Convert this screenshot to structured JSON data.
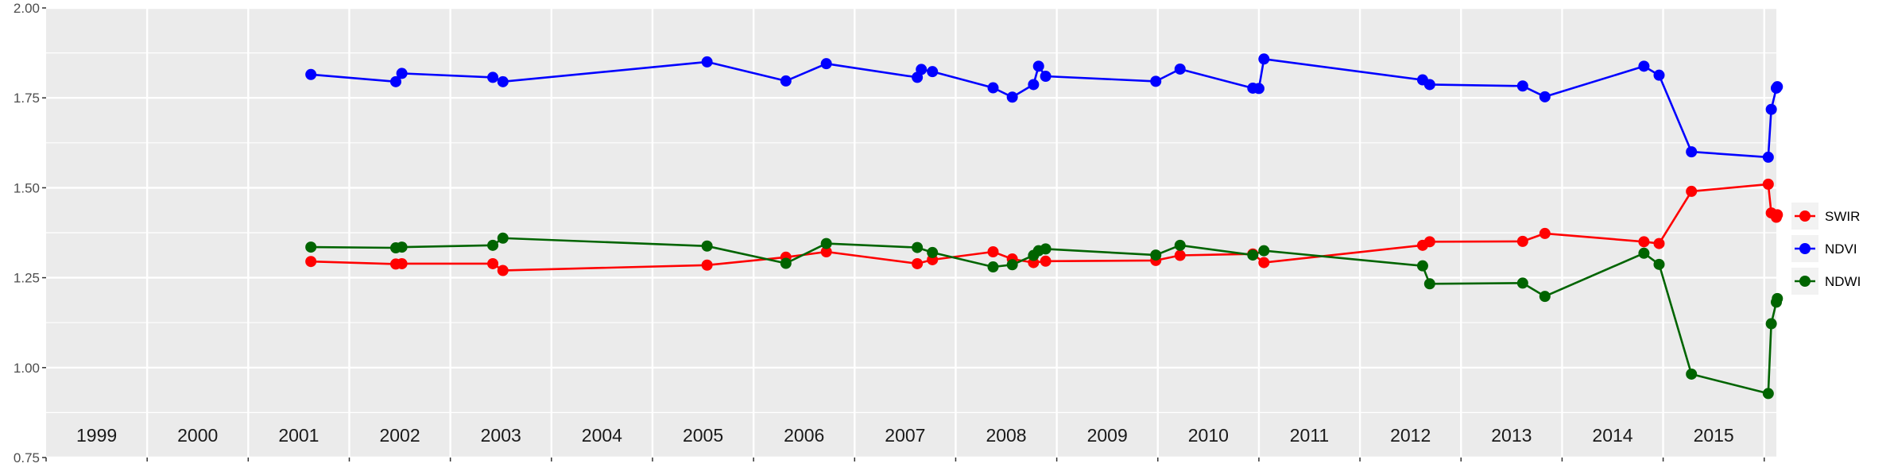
{
  "chart_data": {
    "type": "line",
    "title": "",
    "xlabel": "",
    "ylabel": "",
    "ylim": [
      0.75,
      2.0
    ],
    "y_ticks": [
      "0.75",
      "1.00",
      "1.25",
      "1.50",
      "1.75",
      "2.00"
    ],
    "y_tick_values": [
      0.75,
      1.0,
      1.25,
      1.5,
      1.75,
      2.0
    ],
    "xlim": [
      1999.0,
      2016.12
    ],
    "x_tick_labels": [
      "1999",
      "2000",
      "2001",
      "2002",
      "2003",
      "2004",
      "2005",
      "2006",
      "2007",
      "2008",
      "2009",
      "2010",
      "2011",
      "2012",
      "2013",
      "2014",
      "2015"
    ],
    "x_tick_label_years": [
      1999,
      2000,
      2001,
      2002,
      2003,
      2004,
      2005,
      2006,
      2007,
      2008,
      2009,
      2010,
      2011,
      2012,
      2013,
      2014,
      2015
    ],
    "grid": true,
    "panel_color": "#ebebeb",
    "legend_placement": "right",
    "legend": [
      "SWIR",
      "NDVI",
      "NDWI"
    ],
    "series": [
      {
        "name": "SWIR",
        "color": "#ff0000",
        "points": [
          {
            "x": 2001.62,
            "y": 1.295
          },
          {
            "x": 2002.46,
            "y": 1.288
          },
          {
            "x": 2002.52,
            "y": 1.289
          },
          {
            "x": 2003.42,
            "y": 1.289
          },
          {
            "x": 2003.52,
            "y": 1.27
          },
          {
            "x": 2005.54,
            "y": 1.285
          },
          {
            "x": 2006.32,
            "y": 1.307
          },
          {
            "x": 2006.72,
            "y": 1.322
          },
          {
            "x": 2007.62,
            "y": 1.289
          },
          {
            "x": 2007.77,
            "y": 1.3
          },
          {
            "x": 2008.37,
            "y": 1.322
          },
          {
            "x": 2008.56,
            "y": 1.302
          },
          {
            "x": 2008.77,
            "y": 1.292
          },
          {
            "x": 2008.89,
            "y": 1.296
          },
          {
            "x": 2009.98,
            "y": 1.298
          },
          {
            "x": 2010.22,
            "y": 1.312
          },
          {
            "x": 2010.94,
            "y": 1.316
          },
          {
            "x": 2011.05,
            "y": 1.292
          },
          {
            "x": 2012.62,
            "y": 1.34
          },
          {
            "x": 2012.69,
            "y": 1.35
          },
          {
            "x": 2013.61,
            "y": 1.351
          },
          {
            "x": 2013.83,
            "y": 1.373
          },
          {
            "x": 2014.81,
            "y": 1.35
          },
          {
            "x": 2014.96,
            "y": 1.345
          },
          {
            "x": 2015.28,
            "y": 1.49
          },
          {
            "x": 2016.04,
            "y": 1.51
          },
          {
            "x": 2016.07,
            "y": 1.43
          },
          {
            "x": 2016.12,
            "y": 1.418
          },
          {
            "x": 2016.13,
            "y": 1.425
          }
        ]
      },
      {
        "name": "NDVI",
        "color": "#0000ff",
        "points": [
          {
            "x": 2001.62,
            "y": 1.815
          },
          {
            "x": 2002.46,
            "y": 1.795
          },
          {
            "x": 2002.52,
            "y": 1.818
          },
          {
            "x": 2003.42,
            "y": 1.807
          },
          {
            "x": 2003.52,
            "y": 1.795
          },
          {
            "x": 2005.54,
            "y": 1.85
          },
          {
            "x": 2006.32,
            "y": 1.797
          },
          {
            "x": 2006.72,
            "y": 1.845
          },
          {
            "x": 2007.62,
            "y": 1.807
          },
          {
            "x": 2007.66,
            "y": 1.829
          },
          {
            "x": 2007.77,
            "y": 1.823
          },
          {
            "x": 2008.37,
            "y": 1.778
          },
          {
            "x": 2008.56,
            "y": 1.752
          },
          {
            "x": 2008.77,
            "y": 1.787
          },
          {
            "x": 2008.82,
            "y": 1.838
          },
          {
            "x": 2008.89,
            "y": 1.81
          },
          {
            "x": 2009.98,
            "y": 1.796
          },
          {
            "x": 2010.22,
            "y": 1.83
          },
          {
            "x": 2010.94,
            "y": 1.777
          },
          {
            "x": 2011.0,
            "y": 1.776
          },
          {
            "x": 2011.05,
            "y": 1.858
          },
          {
            "x": 2012.62,
            "y": 1.8
          },
          {
            "x": 2012.69,
            "y": 1.787
          },
          {
            "x": 2013.61,
            "y": 1.783
          },
          {
            "x": 2013.83,
            "y": 1.753
          },
          {
            "x": 2014.81,
            "y": 1.838
          },
          {
            "x": 2014.96,
            "y": 1.813
          },
          {
            "x": 2015.28,
            "y": 1.6
          },
          {
            "x": 2016.04,
            "y": 1.585
          },
          {
            "x": 2016.07,
            "y": 1.718
          },
          {
            "x": 2016.12,
            "y": 1.777
          },
          {
            "x": 2016.13,
            "y": 1.781
          }
        ]
      },
      {
        "name": "NDWI",
        "color": "#006400",
        "points": [
          {
            "x": 2001.62,
            "y": 1.335
          },
          {
            "x": 2002.46,
            "y": 1.333
          },
          {
            "x": 2002.52,
            "y": 1.335
          },
          {
            "x": 2003.42,
            "y": 1.34
          },
          {
            "x": 2003.52,
            "y": 1.36
          },
          {
            "x": 2005.54,
            "y": 1.338
          },
          {
            "x": 2006.32,
            "y": 1.29
          },
          {
            "x": 2006.72,
            "y": 1.345
          },
          {
            "x": 2007.62,
            "y": 1.334
          },
          {
            "x": 2007.77,
            "y": 1.32
          },
          {
            "x": 2008.37,
            "y": 1.28
          },
          {
            "x": 2008.56,
            "y": 1.286
          },
          {
            "x": 2008.77,
            "y": 1.312
          },
          {
            "x": 2008.82,
            "y": 1.325
          },
          {
            "x": 2008.89,
            "y": 1.33
          },
          {
            "x": 2009.98,
            "y": 1.313
          },
          {
            "x": 2010.22,
            "y": 1.34
          },
          {
            "x": 2010.94,
            "y": 1.313
          },
          {
            "x": 2011.05,
            "y": 1.325
          },
          {
            "x": 2012.62,
            "y": 1.283
          },
          {
            "x": 2012.69,
            "y": 1.233
          },
          {
            "x": 2013.61,
            "y": 1.235
          },
          {
            "x": 2013.83,
            "y": 1.198
          },
          {
            "x": 2014.81,
            "y": 1.318
          },
          {
            "x": 2014.96,
            "y": 1.287
          },
          {
            "x": 2015.28,
            "y": 0.982
          },
          {
            "x": 2016.04,
            "y": 0.928
          },
          {
            "x": 2016.07,
            "y": 1.122
          },
          {
            "x": 2016.12,
            "y": 1.182
          },
          {
            "x": 2016.13,
            "y": 1.192
          }
        ]
      }
    ]
  }
}
